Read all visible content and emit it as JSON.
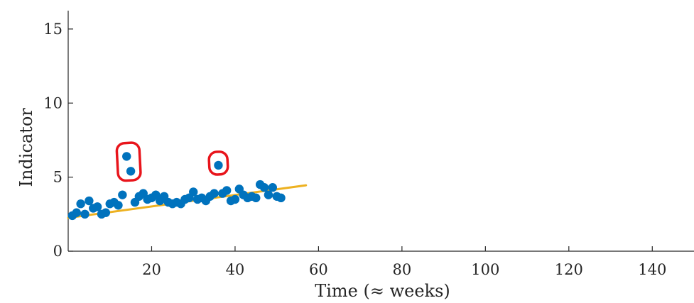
{
  "chart_data": {
    "type": "scatter",
    "title": "",
    "xlabel": "Time (≈ weeks)",
    "ylabel": "Indicator",
    "xlim": [
      0,
      150
    ],
    "ylim": [
      0,
      16
    ],
    "xticks": [
      20,
      40,
      60,
      80,
      100,
      120,
      140
    ],
    "yticks": [
      0,
      5,
      10,
      15
    ],
    "grid": false,
    "colors": {
      "points": "#0072BD",
      "trend": "#EDB120",
      "highlight": "#E8141B",
      "axis": "#262626"
    },
    "series": [
      {
        "kind": "scatter",
        "points": [
          [
            1,
            2.4
          ],
          [
            2,
            2.6
          ],
          [
            3,
            3.2
          ],
          [
            4,
            2.5
          ],
          [
            5,
            3.4
          ],
          [
            6,
            2.9
          ],
          [
            7,
            3.0
          ],
          [
            8,
            2.5
          ],
          [
            9,
            2.6
          ],
          [
            10,
            3.2
          ],
          [
            11,
            3.3
          ],
          [
            12,
            3.1
          ],
          [
            13,
            3.8
          ],
          [
            14,
            6.4
          ],
          [
            15,
            5.4
          ],
          [
            16,
            3.3
          ],
          [
            17,
            3.7
          ],
          [
            18,
            3.9
          ],
          [
            19,
            3.5
          ],
          [
            20,
            3.6
          ],
          [
            21,
            3.8
          ],
          [
            22,
            3.4
          ],
          [
            23,
            3.7
          ],
          [
            24,
            3.3
          ],
          [
            25,
            3.2
          ],
          [
            26,
            3.3
          ],
          [
            27,
            3.2
          ],
          [
            28,
            3.5
          ],
          [
            29,
            3.6
          ],
          [
            30,
            4.0
          ],
          [
            31,
            3.5
          ],
          [
            32,
            3.6
          ],
          [
            33,
            3.4
          ],
          [
            34,
            3.7
          ],
          [
            35,
            3.9
          ],
          [
            36,
            5.8
          ],
          [
            37,
            3.9
          ],
          [
            38,
            4.1
          ],
          [
            39,
            3.4
          ],
          [
            40,
            3.5
          ],
          [
            41,
            4.2
          ],
          [
            42,
            3.8
          ],
          [
            43,
            3.6
          ],
          [
            44,
            3.7
          ],
          [
            45,
            3.6
          ],
          [
            46,
            4.5
          ],
          [
            47,
            4.3
          ],
          [
            48,
            3.8
          ],
          [
            49,
            4.3
          ],
          [
            50,
            3.7
          ],
          [
            51,
            3.6
          ]
        ]
      },
      {
        "kind": "trend-line",
        "points": [
          [
            0,
            2.25
          ],
          [
            57,
            4.45
          ]
        ]
      }
    ],
    "annotations": [
      {
        "kind": "outlier-circle",
        "points": [
          [
            14,
            6.4
          ],
          [
            15,
            5.4
          ]
        ]
      },
      {
        "kind": "outlier-circle",
        "points": [
          [
            36,
            5.8
          ]
        ]
      }
    ]
  }
}
